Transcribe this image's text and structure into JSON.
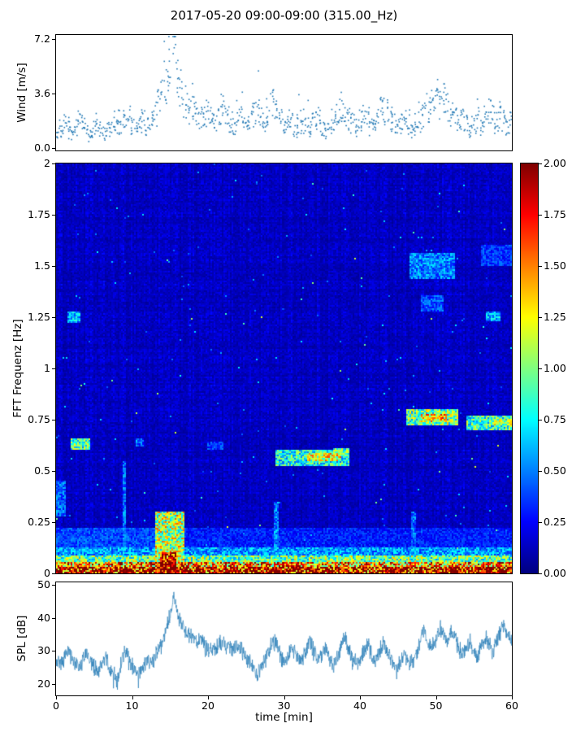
{
  "title": "2017-05-20 09:00-09:00 (315.00_Hz)",
  "colors": {
    "accent": "#1f77b4",
    "axis": "#000000",
    "background": "#ffffff"
  },
  "chart_data": [
    {
      "type": "scatter",
      "ylabel": "Wind [m/s]",
      "xlim": [
        0,
        60
      ],
      "ylim": [
        -0.15,
        7.45
      ],
      "yticks": [
        0.0,
        3.6,
        7.2
      ],
      "yticklabels": [
        "0.0",
        "3.6",
        "7.2"
      ],
      "marker_color": "#1f77b4",
      "x_step": 0.5,
      "points_per_bin": 8,
      "envelope": [
        1.0,
        1.3,
        1.6,
        1.2,
        0.9,
        1.4,
        1.8,
        1.5,
        1.1,
        0.8,
        1.2,
        1.6,
        1.4,
        1.0,
        1.3,
        1.7,
        1.5,
        1.2,
        1.8,
        2.0,
        1.6,
        1.3,
        1.5,
        1.8,
        1.4,
        1.7,
        2.2,
        2.8,
        3.5,
        4.5,
        5.5,
        6.6,
        5.0,
        3.8,
        3.0,
        2.4,
        2.8,
        2.2,
        1.8,
        2.0,
        2.3,
        1.9,
        1.6,
        2.1,
        2.6,
        2.2,
        1.8,
        1.5,
        1.9,
        2.3,
        2.0,
        1.7,
        2.1,
        2.5,
        2.0,
        1.6,
        2.4,
        2.8,
        2.2,
        1.8,
        1.5,
        1.9,
        1.6,
        1.3,
        1.7,
        1.5,
        1.8,
        1.4,
        1.6,
        1.9,
        1.5,
        1.2,
        1.6,
        2.0,
        2.4,
        2.8,
        2.3,
        1.9,
        1.6,
        1.4,
        1.8,
        2.2,
        1.9,
        1.5,
        1.8,
        2.4,
        2.8,
        2.3,
        1.9,
        1.6,
        1.3,
        1.6,
        1.9,
        1.5,
        1.2,
        1.5,
        1.8,
        2.2,
        2.6,
        3.0,
        3.4,
        3.0,
        3.3,
        2.8,
        2.3,
        1.9,
        1.6,
        1.9,
        1.5,
        1.2,
        1.6,
        1.9,
        1.5,
        2.0,
        2.5,
        2.1,
        1.7,
        2.2,
        1.9,
        1.5,
        1.8
      ]
    },
    {
      "type": "heatmap",
      "ylabel": "FFT Frequenz [Hz]",
      "xlim": [
        0,
        60
      ],
      "ylim": [
        0,
        2
      ],
      "vmin": 0,
      "vmax": 2,
      "colormap": "jet",
      "yticks": [
        0,
        0.25,
        0.5,
        0.75,
        1,
        1.25,
        1.5,
        1.75,
        2
      ],
      "yticklabels": [
        "0",
        "0.25",
        "0.5",
        "0.75",
        "1",
        "1.25",
        "1.5",
        "1.75",
        "2"
      ],
      "background": {
        "base": 0.06,
        "noise": 0.14
      },
      "speckle": {
        "p1": 0.004,
        "v1": 0.55,
        "p2": 0.001,
        "v2": 1.0
      },
      "feature_format": [
        "t0_min",
        "t1_min",
        "f0_hz",
        "f1_hz",
        "value"
      ],
      "features": [
        [
          0,
          60,
          0,
          0.03,
          1.95
        ],
        [
          0,
          60,
          0.03,
          0.055,
          1.45
        ],
        [
          0,
          60,
          0.055,
          0.085,
          0.95
        ],
        [
          0,
          60,
          0.085,
          0.13,
          0.55
        ],
        [
          0,
          60,
          0.13,
          0.22,
          0.3
        ],
        [
          0,
          16,
          0.1,
          0.22,
          0.38
        ],
        [
          13,
          17,
          0,
          0.3,
          1.1
        ],
        [
          13.8,
          15.8,
          0,
          0.1,
          1.9
        ],
        [
          8.7,
          9.3,
          0,
          0.55,
          0.45
        ],
        [
          28.8,
          29.4,
          0,
          0.35,
          0.5
        ],
        [
          46.8,
          47.4,
          0,
          0.3,
          0.45
        ],
        [
          2,
          4.5,
          0.6,
          0.66,
          0.9
        ],
        [
          1.5,
          3.2,
          1.22,
          1.28,
          0.6
        ],
        [
          0,
          1.2,
          0.28,
          0.45,
          0.45
        ],
        [
          29,
          38.5,
          0.52,
          0.6,
          0.8
        ],
        [
          33,
          37.5,
          0.55,
          0.59,
          1.15
        ],
        [
          36.5,
          38.5,
          0.57,
          0.61,
          0.9
        ],
        [
          46,
          53,
          0.72,
          0.8,
          0.95
        ],
        [
          48,
          51.5,
          0.74,
          0.78,
          1.25
        ],
        [
          54,
          60,
          0.7,
          0.77,
          0.85
        ],
        [
          57,
          60,
          0.72,
          0.75,
          1.0
        ],
        [
          46.5,
          52.5,
          1.44,
          1.56,
          0.5
        ],
        [
          48,
          51,
          1.28,
          1.36,
          0.4
        ],
        [
          56.5,
          58.5,
          1.23,
          1.28,
          0.6
        ],
        [
          56,
          60,
          1.5,
          1.6,
          0.35
        ],
        [
          20,
          22,
          0.6,
          0.64,
          0.35
        ],
        [
          10.5,
          11.5,
          0.62,
          0.66,
          0.4
        ]
      ],
      "colorbar": {
        "vmin": 0,
        "vmax": 2,
        "ticks": [
          0,
          0.25,
          0.5,
          0.75,
          1,
          1.25,
          1.5,
          1.75,
          2
        ],
        "ticklabels": [
          "0.00",
          "0.25",
          "0.50",
          "0.75",
          "1.00",
          "1.25",
          "1.50",
          "1.75",
          "2.00"
        ]
      }
    },
    {
      "type": "line",
      "ylabel": "SPL [dB]",
      "xlabel": "time [min]",
      "color": "#1f77b4",
      "xlim": [
        0,
        60
      ],
      "ylim": [
        16.5,
        50.8
      ],
      "yticks": [
        20,
        30,
        40,
        50
      ],
      "yticklabels": [
        "20",
        "30",
        "40",
        "50"
      ],
      "xticks": [
        0,
        10,
        20,
        30,
        40,
        50,
        60
      ],
      "xticklabels": [
        "0",
        "10",
        "20",
        "30",
        "40",
        "50",
        "60"
      ],
      "x_step": 0.5,
      "noise": 2.2,
      "envelope": [
        27,
        26,
        28,
        30,
        28,
        26,
        25,
        27,
        29,
        27,
        25,
        24,
        26,
        28,
        25,
        23,
        22,
        25,
        30,
        28,
        26,
        24,
        23,
        25,
        27,
        26,
        28,
        30,
        33,
        36,
        41,
        47,
        41,
        38,
        36,
        35,
        34,
        33,
        34,
        32,
        31,
        30,
        31,
        32,
        33,
        31,
        30,
        31,
        32,
        30,
        28,
        27,
        25,
        22,
        26,
        28,
        30,
        32,
        33,
        29,
        26,
        28,
        30,
        29,
        27,
        28,
        31,
        33,
        30,
        28,
        29,
        31,
        28,
        26,
        28,
        31,
        34,
        31,
        28,
        26,
        27,
        30,
        32,
        29,
        27,
        29,
        33,
        30,
        28,
        26,
        25,
        27,
        29,
        27,
        26,
        30,
        34,
        36,
        33,
        31,
        34,
        37,
        35,
        33,
        36,
        34,
        31,
        29,
        31,
        33,
        30,
        28,
        31,
        34,
        32,
        30,
        33,
        36,
        38,
        35,
        33
      ]
    }
  ]
}
